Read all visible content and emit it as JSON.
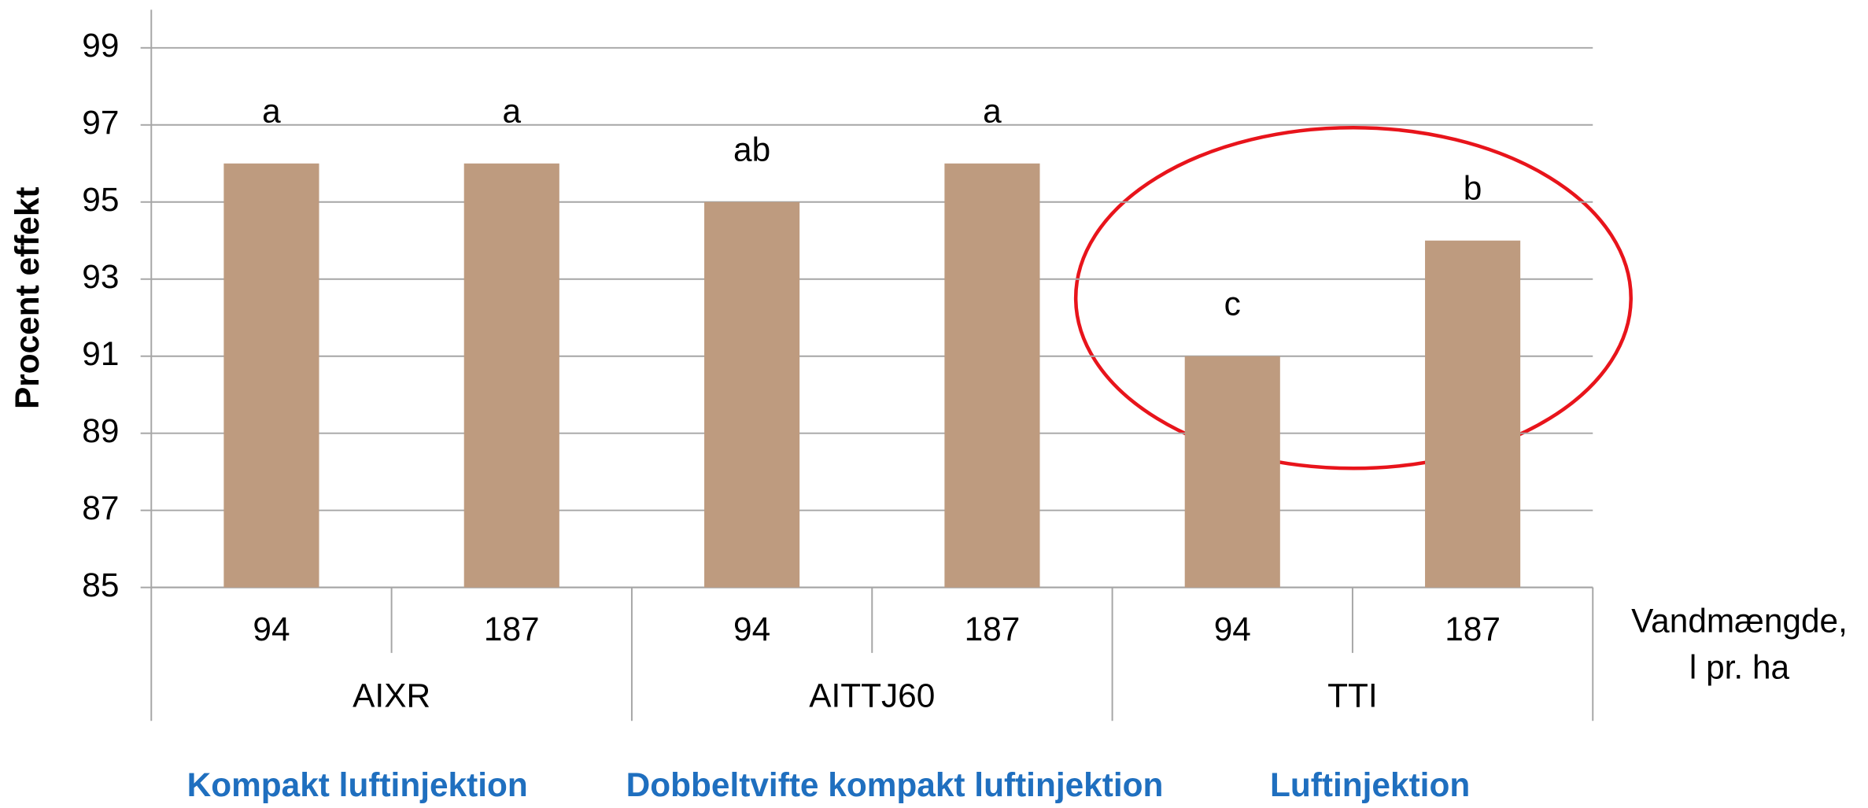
{
  "chart_data": {
    "type": "bar",
    "y_label": "Procent effekt",
    "x_label": [
      "Vandmængde,",
      "l pr. ha"
    ],
    "categories": [
      "94",
      "187",
      "94",
      "187",
      "94",
      "187"
    ],
    "groups": [
      "AIXR",
      "AITTJ60",
      "TTI"
    ],
    "group_descriptions": [
      "Kompakt luftinjektion",
      "Dobbeltvifte kompakt luftinjektion",
      "Luftinjektion"
    ],
    "values": [
      96,
      96,
      95,
      96,
      91,
      94
    ],
    "significance_letters": [
      "a",
      "a",
      "ab",
      "a",
      "c",
      "b"
    ],
    "color": "#be9b7f",
    "ylim": [
      85,
      99
    ],
    "yticks": [
      85,
      87,
      89,
      91,
      93,
      95,
      97,
      99
    ],
    "grid": true
  }
}
